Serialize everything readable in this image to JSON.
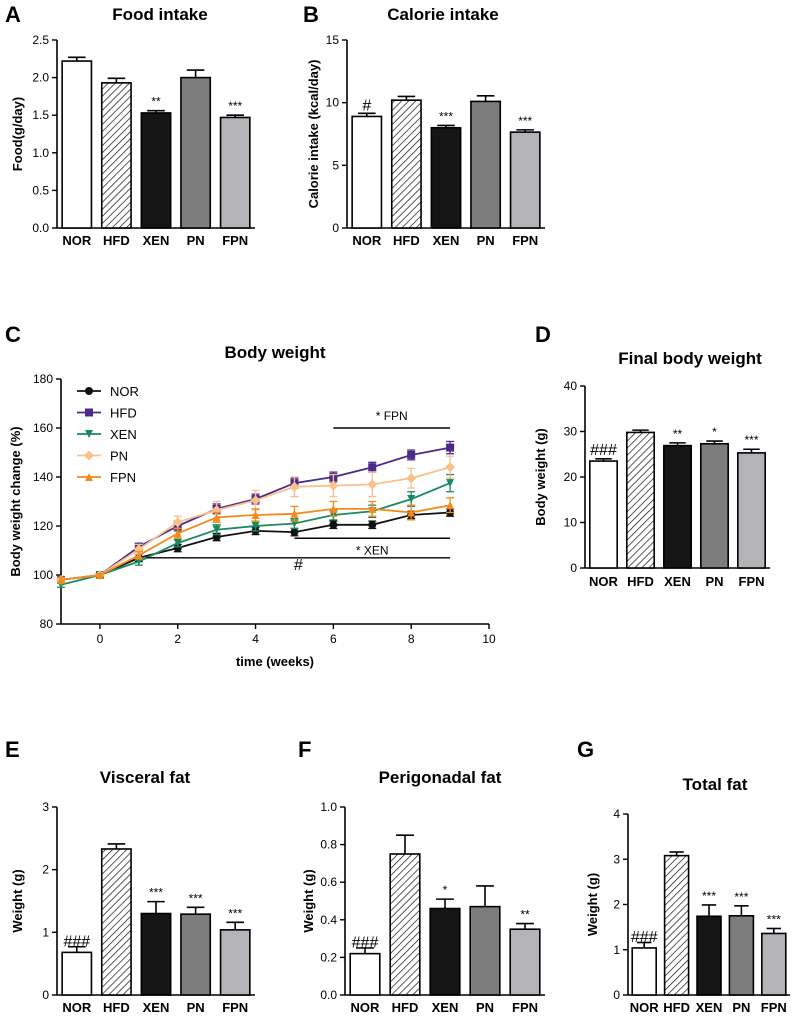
{
  "chart_data": [
    {
      "panel": "A",
      "type": "bar",
      "title": "Food intake",
      "ylabel": "Food(g/day)",
      "ylim": [
        0,
        2.5
      ],
      "yticks": [
        "0.0",
        "0.5",
        "1.0",
        "1.5",
        "2.0",
        "2.5"
      ],
      "categories": [
        "NOR",
        "HFD",
        "XEN",
        "PN",
        "FPN"
      ],
      "values": [
        2.22,
        1.93,
        1.53,
        2.0,
        1.47
      ],
      "errors": [
        0.05,
        0.06,
        0.03,
        0.1,
        0.03
      ],
      "annotations": [
        "",
        "",
        "**",
        "",
        "***"
      ]
    },
    {
      "panel": "B",
      "type": "bar",
      "title": "Calorie intake",
      "ylabel": "Calorie intake (kcal/day)",
      "ylim": [
        0,
        15
      ],
      "yticks": [
        "0",
        "5",
        "10",
        "15"
      ],
      "categories": [
        "NOR",
        "HFD",
        "XEN",
        "PN",
        "FPN"
      ],
      "values": [
        8.9,
        10.2,
        8.0,
        10.1,
        7.65
      ],
      "errors": [
        0.25,
        0.3,
        0.18,
        0.45,
        0.18
      ],
      "annotations": [
        "#",
        "",
        "***",
        "",
        "***"
      ]
    },
    {
      "panel": "C",
      "type": "line",
      "title": "Body weight",
      "xlabel": "time (weeks)",
      "ylabel": "Body weight change (%)",
      "xlim": [
        -1,
        10
      ],
      "ylim": [
        80,
        180
      ],
      "xticks": [
        "0",
        "2",
        "4",
        "6",
        "8",
        "10"
      ],
      "yticks": [
        "80",
        "100",
        "120",
        "140",
        "160",
        "180"
      ],
      "x": [
        -1,
        0,
        1,
        2,
        3,
        4,
        5,
        6,
        7,
        8,
        9
      ],
      "series": [
        {
          "name": "NOR",
          "color": "#111111",
          "marker": "circle",
          "values": [
            98,
            100,
            107,
            111,
            115.5,
            118,
            117.5,
            120.5,
            120.5,
            124.5,
            125.5
          ],
          "errors": [
            1,
            0.5,
            1.5,
            1.5,
            1.5,
            1.5,
            1.5,
            1.5,
            1.5,
            1.5,
            1.5
          ]
        },
        {
          "name": "HFD",
          "color": "#4b2a8a",
          "marker": "square",
          "values": [
            98,
            100,
            111.5,
            120,
            127,
            131,
            137.5,
            140,
            144,
            149,
            152
          ],
          "errors": [
            1,
            0.5,
            1.5,
            2,
            2,
            2,
            2,
            2,
            2,
            2,
            2.5
          ]
        },
        {
          "name": "XEN",
          "color": "#1a8a62",
          "marker": "triangle-down",
          "values": [
            96,
            100,
            105.5,
            113,
            118.5,
            120,
            121,
            124.5,
            126,
            131,
            137.5
          ],
          "errors": [
            1,
            0.5,
            1.5,
            1.5,
            2,
            2,
            2,
            2,
            2.5,
            3,
            3.5
          ]
        },
        {
          "name": "PN",
          "color": "#f9c08e",
          "marker": "diamond",
          "values": [
            98,
            100,
            110.5,
            121.5,
            126.5,
            130.5,
            136,
            136.5,
            137,
            139.5,
            144
          ],
          "errors": [
            1,
            0.5,
            2,
            2.5,
            3.5,
            4,
            4,
            4.5,
            5,
            4,
            4.5
          ]
        },
        {
          "name": "FPN",
          "color": "#f28a1c",
          "marker": "triangle-up",
          "values": [
            98,
            100,
            108,
            117,
            123.5,
            124.5,
            125,
            127,
            127,
            125.5,
            128.5
          ],
          "errors": [
            1,
            0.5,
            1.5,
            2,
            2,
            2.5,
            3,
            3,
            3,
            3,
            3
          ]
        }
      ],
      "significance": [
        {
          "label": "* FPN",
          "from": 6,
          "to": 9,
          "y": 160
        },
        {
          "label": "* XEN",
          "from": 5,
          "to": 9,
          "y": 115
        },
        {
          "label": "#",
          "from": 1.2,
          "to": 9,
          "y": 107
        }
      ]
    },
    {
      "panel": "D",
      "type": "bar",
      "title": "Final body weight",
      "ylabel": "Body weight (g)",
      "ylim": [
        0,
        40
      ],
      "yticks": [
        "0",
        "10",
        "20",
        "30",
        "40"
      ],
      "categories": [
        "NOR",
        "HFD",
        "XEN",
        "PN",
        "FPN"
      ],
      "values": [
        23.5,
        29.8,
        26.9,
        27.3,
        25.3
      ],
      "errors": [
        0.5,
        0.5,
        0.6,
        0.6,
        0.8
      ],
      "annotations": [
        "###",
        "",
        "**",
        "*",
        "***"
      ]
    },
    {
      "panel": "E",
      "type": "bar",
      "title": "Visceral fat",
      "ylabel": "Weight (g)",
      "ylim": [
        0,
        3
      ],
      "yticks": [
        "0",
        "1",
        "2",
        "3"
      ],
      "categories": [
        "NOR",
        "HFD",
        "XEN",
        "PN",
        "FPN"
      ],
      "values": [
        0.68,
        2.33,
        1.3,
        1.29,
        1.04
      ],
      "errors": [
        0.09,
        0.08,
        0.19,
        0.11,
        0.12
      ],
      "annotations": [
        "###",
        "",
        "***",
        "***",
        "***"
      ]
    },
    {
      "panel": "F",
      "type": "bar",
      "title": "Perigonadal fat",
      "ylabel": "Weight (g)",
      "ylim": [
        0,
        1.0
      ],
      "yticks": [
        "0.0",
        "0.2",
        "0.4",
        "0.6",
        "0.8",
        "1.0"
      ],
      "categories": [
        "NOR",
        "HFD",
        "XEN",
        "PN",
        "FPN"
      ],
      "values": [
        0.22,
        0.75,
        0.46,
        0.47,
        0.35
      ],
      "errors": [
        0.03,
        0.1,
        0.05,
        0.11,
        0.03
      ],
      "annotations": [
        "###",
        "",
        "*",
        "",
        "**"
      ]
    },
    {
      "panel": "G",
      "type": "bar",
      "title": "Total fat",
      "ylabel": "Weight (g)",
      "ylim": [
        0,
        4
      ],
      "yticks": [
        "0",
        "1",
        "2",
        "3",
        "4"
      ],
      "categories": [
        "NOR",
        "HFD",
        "XEN",
        "PN",
        "FPN"
      ],
      "values": [
        1.04,
        3.08,
        1.74,
        1.75,
        1.36
      ],
      "errors": [
        0.12,
        0.08,
        0.25,
        0.22,
        0.11
      ],
      "annotations": [
        "###",
        "",
        "***",
        "***",
        "***"
      ]
    }
  ],
  "bar_styles": [
    {
      "fill": "#ffffff",
      "hatch": false
    },
    {
      "fill": "#ffffff",
      "hatch": true
    },
    {
      "fill": "#151515",
      "hatch": false
    },
    {
      "fill": "#7d7d7d",
      "hatch": false
    },
    {
      "fill": "#b3b3b8",
      "hatch": false
    }
  ]
}
